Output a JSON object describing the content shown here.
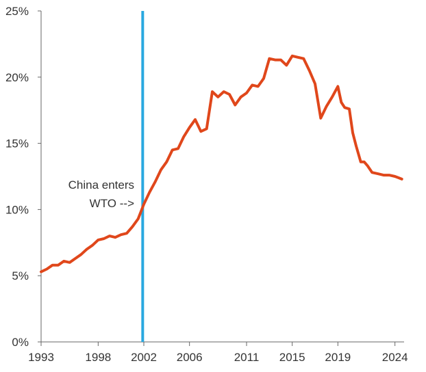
{
  "chart_data": {
    "type": "line",
    "title": "",
    "xlabel": "",
    "ylabel": "",
    "xlim": [
      1993,
      2024.8
    ],
    "ylim": [
      0,
      25
    ],
    "grid": false,
    "colors": {
      "series": "#e0471b",
      "marker_line": "#29a8e0",
      "axis": "#666666"
    },
    "y_ticks": [
      {
        "value": 0,
        "label": "0%"
      },
      {
        "value": 5,
        "label": "5%"
      },
      {
        "value": 10,
        "label": "10%"
      },
      {
        "value": 15,
        "label": "15%"
      },
      {
        "value": 20,
        "label": "20%"
      },
      {
        "value": 25,
        "label": "25%"
      }
    ],
    "x_ticks": [
      {
        "value": 1993,
        "label": "1993"
      },
      {
        "value": 1998,
        "label": "1998"
      },
      {
        "value": 2002,
        "label": "2002"
      },
      {
        "value": 2006,
        "label": "2006"
      },
      {
        "value": 2011,
        "label": "2011"
      },
      {
        "value": 2015,
        "label": "2015"
      },
      {
        "value": 2019,
        "label": "2019"
      },
      {
        "value": 2024,
        "label": "2024"
      }
    ],
    "vertical_marker": {
      "x": 2001.9
    },
    "annotation": {
      "lines": [
        "China enters",
        "WTO -->"
      ]
    },
    "series": [
      {
        "x": [
          1993.0,
          1993.5,
          1994.0,
          1994.5,
          1995.0,
          1995.5,
          1996.0,
          1996.5,
          1997.0,
          1997.5,
          1998.0,
          1998.5,
          1999.0,
          1999.5,
          2000.0,
          2000.5,
          2001.0,
          2001.5,
          2002.0,
          2002.5,
          2003.0,
          2003.5,
          2004.0,
          2004.5,
          2005.0,
          2005.5,
          2006.0,
          2006.5,
          2007.0,
          2007.5,
          2008.0,
          2008.5,
          2009.0,
          2009.5,
          2010.0,
          2010.5,
          2011.0,
          2011.5,
          2012.0,
          2012.5,
          2013.0,
          2013.5,
          2014.0,
          2014.5,
          2015.0,
          2015.5,
          2016.0,
          2016.5,
          2017.0,
          2017.5,
          2018.0,
          2018.5,
          2019.0,
          2019.3,
          2019.6,
          2020.0,
          2020.3,
          2020.6,
          2021.0,
          2021.3,
          2021.6,
          2022.0,
          2022.5,
          2023.0,
          2023.5,
          2024.0,
          2024.3,
          2024.6
        ],
        "values": [
          5.3,
          5.5,
          5.8,
          5.8,
          6.1,
          6.0,
          6.3,
          6.6,
          7.0,
          7.3,
          7.7,
          7.8,
          8.0,
          7.9,
          8.1,
          8.2,
          8.7,
          9.3,
          10.4,
          11.3,
          12.1,
          13.0,
          13.6,
          14.5,
          14.6,
          15.5,
          16.2,
          16.8,
          15.9,
          16.1,
          18.9,
          18.5,
          18.9,
          18.7,
          17.9,
          18.5,
          18.8,
          19.4,
          19.3,
          19.9,
          21.4,
          21.3,
          21.3,
          20.9,
          21.6,
          21.5,
          21.4,
          20.5,
          19.5,
          16.9,
          17.8,
          18.5,
          19.3,
          18.1,
          17.7,
          17.6,
          15.8,
          14.8,
          13.6,
          13.6,
          13.3,
          12.8,
          12.7,
          12.6,
          12.6,
          12.5,
          12.4,
          12.3
        ]
      }
    ]
  }
}
